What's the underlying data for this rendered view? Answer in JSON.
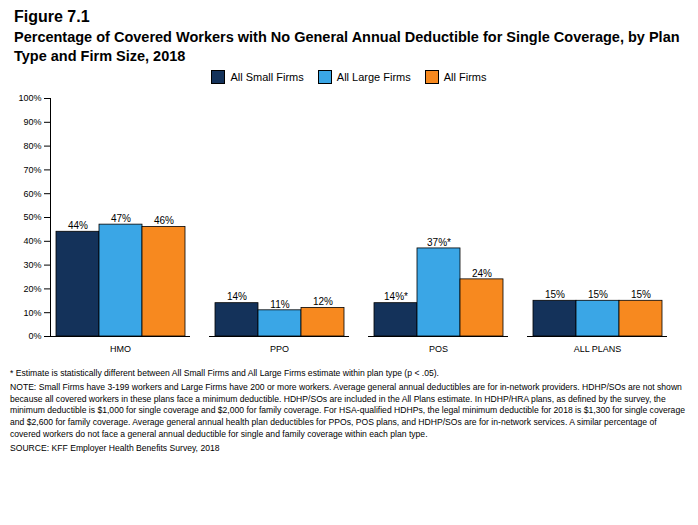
{
  "chart_data": {
    "type": "bar",
    "title": "Figure 7.1",
    "subtitle": "Percentage of Covered Workers with No General Annual Deductible for Single Coverage, by Plan Type and Firm Size, 2018",
    "categories": [
      "HMO",
      "PPO",
      "POS",
      "ALL PLANS"
    ],
    "series": [
      {
        "name": "All Small Firms",
        "color": "#14325a",
        "values": [
          44,
          14,
          14,
          15
        ],
        "value_labels": [
          "44%",
          "14%",
          "14%*",
          "15%"
        ]
      },
      {
        "name": "All Large Firms",
        "color": "#3aa6e6",
        "values": [
          47,
          11,
          37,
          15
        ],
        "value_labels": [
          "47%",
          "11%",
          "37%*",
          "15%"
        ]
      },
      {
        "name": "All Firms",
        "color": "#f7891f",
        "values": [
          46,
          12,
          24,
          15
        ],
        "value_labels": [
          "46%",
          "12%",
          "24%",
          "15%"
        ]
      }
    ],
    "ylim": [
      0,
      100
    ],
    "yticks": [
      {
        "value": 0,
        "label": "0%"
      },
      {
        "value": 10,
        "label": "10%"
      },
      {
        "value": 20,
        "label": "20%"
      },
      {
        "value": 30,
        "label": "30%"
      },
      {
        "value": 40,
        "label": "40%"
      },
      {
        "value": 50,
        "label": "50%"
      },
      {
        "value": 60,
        "label": "60%"
      },
      {
        "value": 70,
        "label": "70%"
      },
      {
        "value": 80,
        "label": "80%"
      },
      {
        "value": 90,
        "label": "90%"
      },
      {
        "value": 100,
        "label": "100%"
      }
    ],
    "grid": false,
    "legend": "top",
    "data_labels": true,
    "annotations": [
      "* Estimate is statistically different between All Small Firms and All Large Firms estimate within plan type (p < .05).",
      "NOTE: Small Firms have 3-199 workers and Large Firms have 200 or more workers. Average general annual deductibles are for in-network providers. HDHP/SOs are not shown because all covered workers in these plans face a minimum deductible. HDHP/SOs are included in the All Plans estimate. In HDHP/HRA plans, as defined by the survey, the minimum deductible is $1,000 for single coverage and $2,000 for family coverage. For HSA-qualified HDHPs, the legal minimum deductible for 2018 is $1,300 for single coverage and $2,600 for family coverage. Average general annual health plan deductibles for PPOs, POS plans, and HDHP/SOs are for in-network services. A similar percentage of covered workers do not face a general annual deductible for single and family coverage within each plan type.",
      "SOURCE: KFF Employer Health Benefits Survey, 2018"
    ]
  }
}
